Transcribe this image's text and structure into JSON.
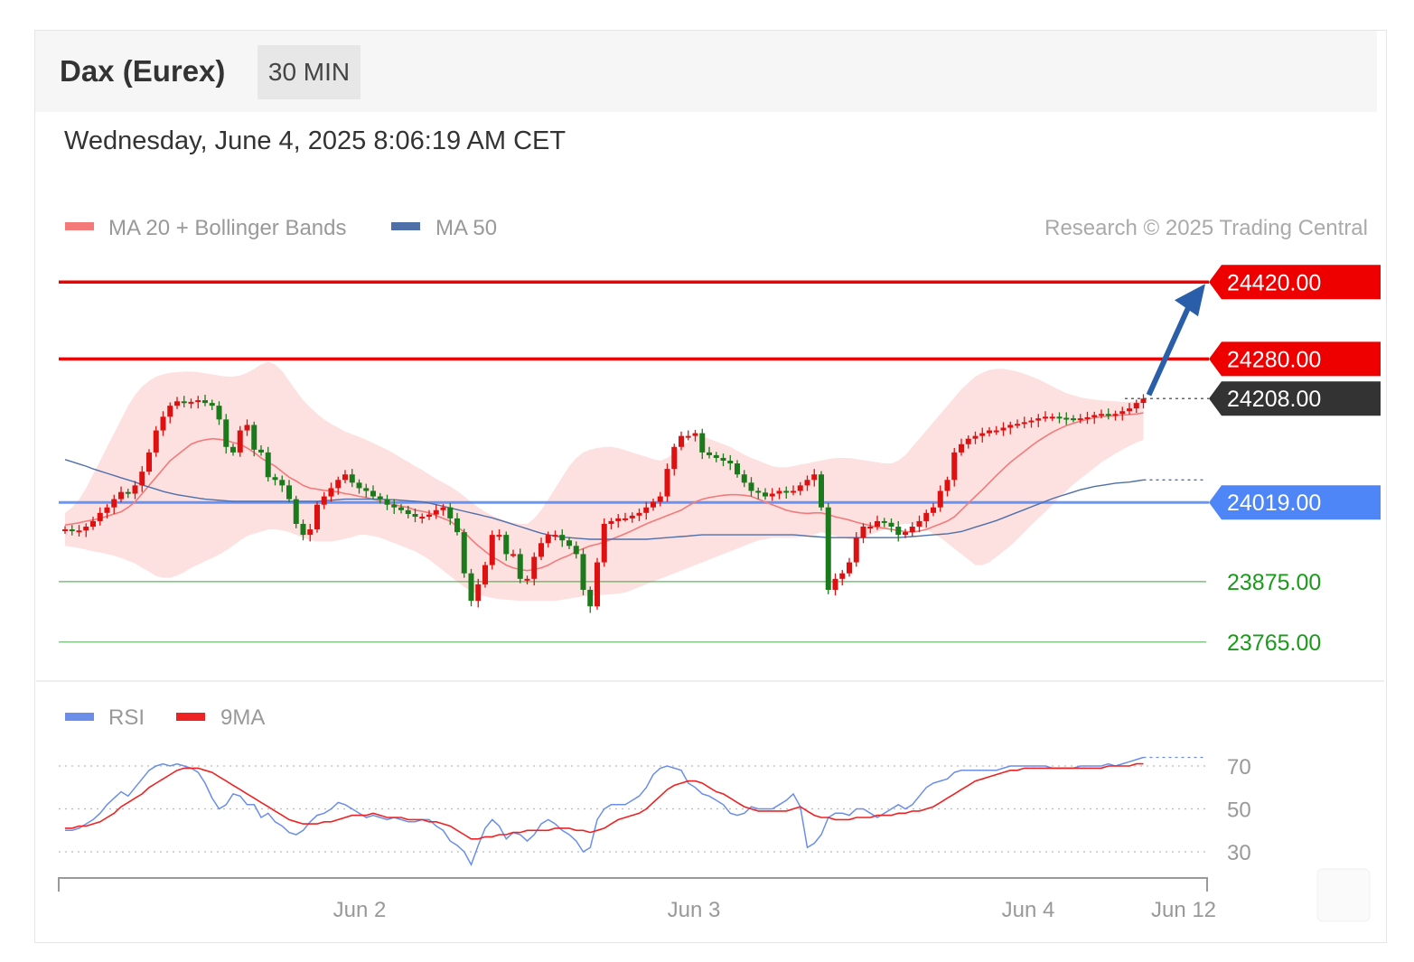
{
  "header": {
    "instrument": "Dax (Eurex)",
    "timeframe": "30 MIN",
    "datetime": "Wednesday, June 4, 2025 8:06:19 AM CET"
  },
  "legend": {
    "ma20": "MA 20 + Bollinger Bands",
    "ma50": "MA 50",
    "rsi": "RSI",
    "rsi_ma": "9MA"
  },
  "copyright": "Research © 2025 Trading Central",
  "colors": {
    "resistance": "#ee0000",
    "pivot": "#4f86f7",
    "support": "#1b9a1b",
    "last": "#333333",
    "bullish": "#1b7a1b",
    "bearish": "#dd1111",
    "bollinger": "#fde1e1",
    "ma20": "#f47a7a",
    "ma50": "#4f6fa8",
    "arrow": "#2a5ea8",
    "rsi": "#6b8ee8",
    "rsi_ma": "#ee2222"
  },
  "chart_data": {
    "type": "candlestick",
    "ylim": [
      23740,
      24450
    ],
    "levels": [
      {
        "value": 24420.0,
        "label": "24420.00",
        "kind": "resistance"
      },
      {
        "value": 24280.0,
        "label": "24280.00",
        "kind": "resistance"
      },
      {
        "value": 24208.0,
        "label": "24208.00",
        "kind": "last"
      },
      {
        "value": 24019.0,
        "label": "24019.00",
        "kind": "pivot"
      },
      {
        "value": 23875.0,
        "label": "23875.00",
        "kind": "support"
      },
      {
        "value": 23765.0,
        "label": "23765.00",
        "kind": "support"
      }
    ],
    "x_ticks": [
      "Jun 2",
      "Jun 3",
      "Jun 4",
      "Jun 12"
    ],
    "close": [
      23970,
      23967,
      23968,
      23975,
      23985,
      24000,
      24010,
      24025,
      24038,
      24035,
      24050,
      24075,
      24110,
      24150,
      24175,
      24195,
      24203,
      24200,
      24202,
      24205,
      24200,
      24195,
      24170,
      24120,
      24110,
      24150,
      24160,
      24115,
      24110,
      24065,
      24060,
      24050,
      24025,
      23980,
      23960,
      23970,
      24015,
      24030,
      24045,
      24060,
      24070,
      24055,
      24045,
      24040,
      24030,
      24025,
      24015,
      24010,
      24005,
      23998,
      23993,
      23993,
      23997,
      24005,
      24010,
      23990,
      23965,
      23890,
      23840,
      23870,
      23905,
      23960,
      23960,
      23925,
      23925,
      23880,
      23880,
      23920,
      23945,
      23960,
      23960,
      23950,
      23940,
      23925,
      23860,
      23830,
      23910,
      23980,
      23985,
      23990,
      23990,
      23995,
      24000,
      24010,
      24020,
      24030,
      24080,
      24120,
      24140,
      24140,
      24145,
      24110,
      24105,
      24100,
      24095,
      24090,
      24070,
      24055,
      24040,
      24037,
      24030,
      24035,
      24040,
      24038,
      24040,
      24050,
      24060,
      24070,
      24010,
      23860,
      23880,
      23890,
      23910,
      23955,
      23975,
      23975,
      23985,
      23982,
      23975,
      23960,
      23965,
      23975,
      23985,
      24000,
      24010,
      24040,
      24060,
      24110,
      24125,
      24135,
      24140,
      24145,
      24150,
      24150,
      24155,
      24160,
      24162,
      24165,
      24168,
      24172,
      24175,
      24175,
      24173,
      24172,
      24171,
      24172,
      24174,
      24178,
      24180,
      24178,
      24180,
      24185,
      24190,
      24200,
      24208
    ],
    "ma20": [
      23978,
      23980,
      23982,
      23985,
      23987,
      23990,
      23994,
      23998,
      24002,
      24010,
      24020,
      24035,
      24050,
      24065,
      24080,
      24095,
      24105,
      24115,
      24125,
      24130,
      24133,
      24135,
      24134,
      24132,
      24128,
      24125,
      24118,
      24110,
      24100,
      24092,
      24085,
      24075,
      24065,
      24058,
      24050,
      24045,
      24043,
      24041,
      24040,
      24038,
      24035,
      24033,
      24030,
      24028,
      24025,
      24022,
      24018,
      24015,
      24012,
      24010,
      24005,
      24003,
      24000,
      23995,
      23990,
      23985,
      23975,
      23965,
      23952,
      23940,
      23930,
      23920,
      23913,
      23905,
      23900,
      23897,
      23895,
      23897,
      23900,
      23905,
      23912,
      23918,
      23923,
      23930,
      23935,
      23940,
      23943,
      23947,
      23952,
      23957,
      23962,
      23968,
      23974,
      23980,
      23985,
      23990,
      23995,
      24000,
      24005,
      24013,
      24020,
      24025,
      24028,
      24030,
      24032,
      24033,
      24033,
      24032,
      24030,
      24025,
      24020,
      24015,
      24010,
      24005,
      24002,
      24000,
      23999,
      24000,
      24000,
      23997,
      23993,
      23990,
      23987,
      23983,
      23980,
      23977,
      23974,
      23972,
      23970,
      23968,
      23966,
      23965,
      23967,
      23970,
      23975,
      23980,
      23985,
      23993,
      24005,
      24018,
      24030,
      24042,
      24055,
      24068,
      24080,
      24092,
      24102,
      24112,
      24122,
      24131,
      24139,
      24147,
      24153,
      24159,
      24163,
      24167,
      24170,
      24173,
      24175,
      24176,
      24177,
      24178,
      24179,
      24180,
      24182
    ],
    "ma50": [
      24097,
      24093,
      24089,
      24085,
      24080,
      24076,
      24072,
      24068,
      24064,
      24060,
      24056,
      24051,
      24047,
      24043,
      24039,
      24036,
      24033,
      24031,
      24029,
      24027,
      24025,
      24024,
      24023,
      24022,
      24021,
      24021,
      24021,
      24021,
      24021,
      24021,
      24021,
      24021,
      24021,
      24021,
      24021,
      24021,
      24021,
      24022,
      24023,
      24024,
      24025,
      24025,
      24025,
      24025,
      24025,
      24025,
      24024,
      24024,
      24023,
      24022,
      24021,
      24020,
      24018,
      24015,
      24012,
      24009,
      24006,
      24003,
      24000,
      23997,
      23994,
      23991,
      23987,
      23983,
      23979,
      23975,
      23971,
      23967,
      23963,
      23960,
      23958,
      23956,
      23955,
      23954,
      23953,
      23952,
      23952,
      23952,
      23952,
      23952,
      23952,
      23952,
      23952,
      23952,
      23953,
      23954,
      23955,
      23956,
      23957,
      23958,
      23959,
      23960,
      23960,
      23960,
      23960,
      23960,
      23960,
      23960,
      23960,
      23960,
      23960,
      23960,
      23960,
      23960,
      23960,
      23959,
      23958,
      23957,
      23956,
      23955,
      23955,
      23955,
      23955,
      23955,
      23955,
      23955,
      23955,
      23955,
      23955,
      23955,
      23956,
      23957,
      23958,
      23959,
      23960,
      23961,
      23962,
      23964,
      23966,
      23970,
      23974,
      23978,
      23982,
      23986,
      23991,
      23996,
      24001,
      24006,
      24011,
      24016,
      24021,
      24026,
      24030,
      24034,
      24038,
      24042,
      24045,
      24048,
      24050,
      24052,
      24054,
      24055,
      24056,
      24058,
      24060
    ],
    "bollinger_upper": [
      24000,
      24010,
      24025,
      24045,
      24070,
      24095,
      24120,
      24145,
      24170,
      24195,
      24215,
      24230,
      24240,
      24248,
      24252,
      24255,
      24256,
      24257,
      24257,
      24256,
      24254,
      24252,
      24250,
      24248,
      24248,
      24250,
      24255,
      24262,
      24270,
      24275,
      24270,
      24258,
      24240,
      24222,
      24205,
      24192,
      24180,
      24170,
      24162,
      24155,
      24148,
      24143,
      24138,
      24133,
      24127,
      24121,
      24115,
      24108,
      24100,
      24093,
      24085,
      24078,
      24070,
      24062,
      24055,
      24048,
      24040,
      24030,
      24020,
      24010,
      24002,
      23995,
      23990,
      23985,
      23982,
      23980,
      23980,
      23990,
      24005,
      24025,
      24045,
      24065,
      24085,
      24100,
      24110,
      24115,
      24118,
      24120,
      24120,
      24118,
      24114,
      24110,
      24106,
      24102,
      24098,
      24095,
      24100,
      24110,
      24120,
      24130,
      24140,
      24140,
      24135,
      24130,
      24125,
      24120,
      24113,
      24106,
      24100,
      24095,
      24090,
      24085,
      24083,
      24083,
      24085,
      24088,
      24090,
      24093,
      24095,
      24098,
      24100,
      24100,
      24100,
      24098,
      24096,
      24094,
      24092,
      24090,
      24090,
      24095,
      24105,
      24120,
      24135,
      24150,
      24165,
      24180,
      24195,
      24210,
      24225,
      24237,
      24248,
      24255,
      24260,
      24262,
      24262,
      24260,
      24257,
      24253,
      24248,
      24243,
      24237,
      24230,
      24224,
      24218,
      24214,
      24210,
      24208,
      24206,
      24205,
      24204,
      24203,
      24202,
      24202,
      24203,
      24205
    ],
    "bollinger_lower": [
      23940,
      23938,
      23936,
      23933,
      23930,
      23928,
      23925,
      23922,
      23918,
      23913,
      23908,
      23900,
      23893,
      23885,
      23882,
      23882,
      23886,
      23892,
      23900,
      23906,
      23912,
      23918,
      23924,
      23932,
      23940,
      23950,
      23958,
      23962,
      23966,
      23970,
      23970,
      23968,
      23965,
      23960,
      23955,
      23950,
      23948,
      23948,
      23948,
      23950,
      23953,
      23956,
      23960,
      23960,
      23958,
      23955,
      23950,
      23945,
      23940,
      23935,
      23930,
      23923,
      23915,
      23905,
      23895,
      23885,
      23875,
      23865,
      23858,
      23852,
      23848,
      23845,
      23843,
      23842,
      23841,
      23840,
      23840,
      23840,
      23840,
      23840,
      23840,
      23842,
      23844,
      23846,
      23848,
      23850,
      23850,
      23851,
      23852,
      23853,
      23855,
      23860,
      23865,
      23870,
      23875,
      23880,
      23885,
      23890,
      23895,
      23900,
      23905,
      23910,
      23915,
      23920,
      23925,
      23930,
      23935,
      23940,
      23945,
      23950,
      23952,
      23955,
      23955,
      23955,
      23955,
      23956,
      23958,
      23960,
      23965,
      23962,
      23958,
      23955,
      23952,
      23952,
      23955,
      23960,
      23965,
      23970,
      23975,
      23978,
      23980,
      23980,
      23975,
      23970,
      23962,
      23955,
      23945,
      23935,
      23925,
      23915,
      23905,
      23905,
      23910,
      23920,
      23930,
      23940,
      23952,
      23965,
      23978,
      23990,
      24002,
      24015,
      24028,
      24040,
      24052,
      24062,
      24072,
      24082,
      24092,
      24100,
      24108,
      24115,
      24122,
      24128,
      24133
    ],
    "rsi": {
      "ticks": [
        70,
        50,
        30
      ],
      "ylim": [
        20,
        80
      ],
      "rsi": [
        40,
        40,
        41,
        43,
        45,
        48,
        52,
        55,
        58,
        56,
        60,
        64,
        68,
        70,
        71,
        70,
        71,
        70,
        69,
        67,
        62,
        55,
        50,
        52,
        57,
        56,
        52,
        52,
        46,
        48,
        44,
        42,
        39,
        38,
        40,
        44,
        47,
        48,
        50,
        53,
        52,
        50,
        48,
        46,
        47,
        46,
        45,
        46,
        45,
        44,
        44,
        45,
        45,
        42,
        40,
        35,
        33,
        30,
        24,
        33,
        41,
        45,
        42,
        36,
        39,
        38,
        35,
        38,
        43,
        45,
        43,
        40,
        38,
        35,
        30,
        32,
        45,
        50,
        52,
        52,
        52,
        54,
        56,
        60,
        66,
        69,
        70,
        69,
        68,
        62,
        60,
        57,
        56,
        54,
        52,
        48,
        47,
        48,
        51,
        50,
        50,
        50,
        52,
        54,
        57,
        51,
        32,
        34,
        38,
        46,
        48,
        48,
        47,
        50,
        50,
        48,
        46,
        48,
        50,
        52,
        50,
        52,
        56,
        60,
        62,
        63,
        64,
        67,
        68,
        68,
        68,
        68,
        68,
        68,
        69,
        70,
        70,
        70,
        70,
        70,
        70,
        69,
        69,
        69,
        69,
        70,
        70,
        70,
        70,
        71,
        70,
        71,
        72,
        73,
        74
      ],
      "ma9": [
        41,
        41,
        42,
        42,
        43,
        44,
        46,
        48,
        51,
        53,
        55,
        57,
        60,
        62,
        64,
        66,
        68,
        69,
        69,
        69,
        68,
        67,
        65,
        63,
        61,
        59,
        57,
        55,
        53,
        51,
        49,
        47,
        45,
        44,
        43,
        43,
        43,
        44,
        44,
        45,
        46,
        47,
        47,
        47,
        48,
        47,
        46,
        46,
        46,
        45,
        45,
        45,
        44,
        44,
        43,
        42,
        40,
        38,
        36,
        36,
        37,
        37,
        38,
        38,
        39,
        39,
        40,
        40,
        40,
        40,
        41,
        41,
        41,
        40,
        40,
        39,
        40,
        41,
        43,
        45,
        46,
        47,
        48,
        50,
        53,
        56,
        59,
        61,
        62,
        63,
        63,
        62,
        60,
        58,
        57,
        55,
        53,
        51,
        50,
        49,
        49,
        49,
        49,
        49,
        50,
        51,
        49,
        47,
        46,
        46,
        45,
        45,
        45,
        46,
        46,
        46,
        47,
        47,
        47,
        48,
        48,
        49,
        49,
        50,
        51,
        53,
        55,
        57,
        59,
        61,
        63,
        64,
        65,
        66,
        67,
        68,
        68,
        69,
        69,
        69,
        69,
        69,
        69,
        69,
        69,
        69,
        69,
        69,
        69,
        70,
        70,
        70,
        70,
        71,
        71
      ]
    }
  }
}
